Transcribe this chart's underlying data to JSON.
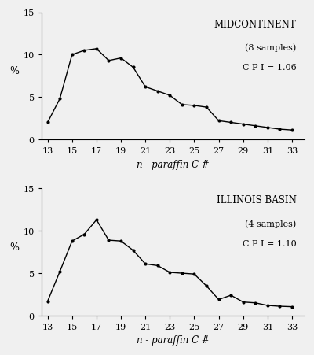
{
  "midcontinent": {
    "title": "MIDCONTINENT",
    "subtitle": "(8 samples)",
    "cpi": "C P I = 1.06",
    "x": [
      13,
      14,
      15,
      16,
      17,
      18,
      19,
      20,
      21,
      22,
      23,
      24,
      25,
      26,
      27,
      28,
      29,
      30,
      31,
      32,
      33
    ],
    "y": [
      2.0,
      4.8,
      10.0,
      10.5,
      10.7,
      9.3,
      9.6,
      8.5,
      6.2,
      5.7,
      5.2,
      4.1,
      4.0,
      3.8,
      2.2,
      2.0,
      1.8,
      1.6,
      1.4,
      1.2,
      1.1
    ]
  },
  "illinois": {
    "title": "ILLINOIS BASIN",
    "subtitle": "(4 samples)",
    "cpi": "C P I = 1.10",
    "x": [
      13,
      14,
      15,
      16,
      17,
      18,
      19,
      20,
      21,
      22,
      23,
      24,
      25,
      26,
      27,
      28,
      29,
      30,
      31,
      32,
      33
    ],
    "y": [
      1.7,
      5.2,
      8.8,
      9.6,
      11.3,
      8.9,
      8.8,
      7.7,
      6.1,
      5.9,
      5.1,
      5.0,
      4.9,
      3.5,
      1.9,
      2.4,
      1.6,
      1.5,
      1.2,
      1.1,
      1.05
    ]
  },
  "ylim": [
    0,
    15
  ],
  "xticks": [
    13,
    15,
    17,
    19,
    21,
    23,
    25,
    27,
    29,
    31,
    33
  ],
  "yticks": [
    0,
    5,
    10,
    15
  ],
  "xlabel": "n - paraffin C #",
  "ylabel": "%",
  "line_color": "#000000",
  "marker_size": 4,
  "bg_color": "#f0f0f0"
}
